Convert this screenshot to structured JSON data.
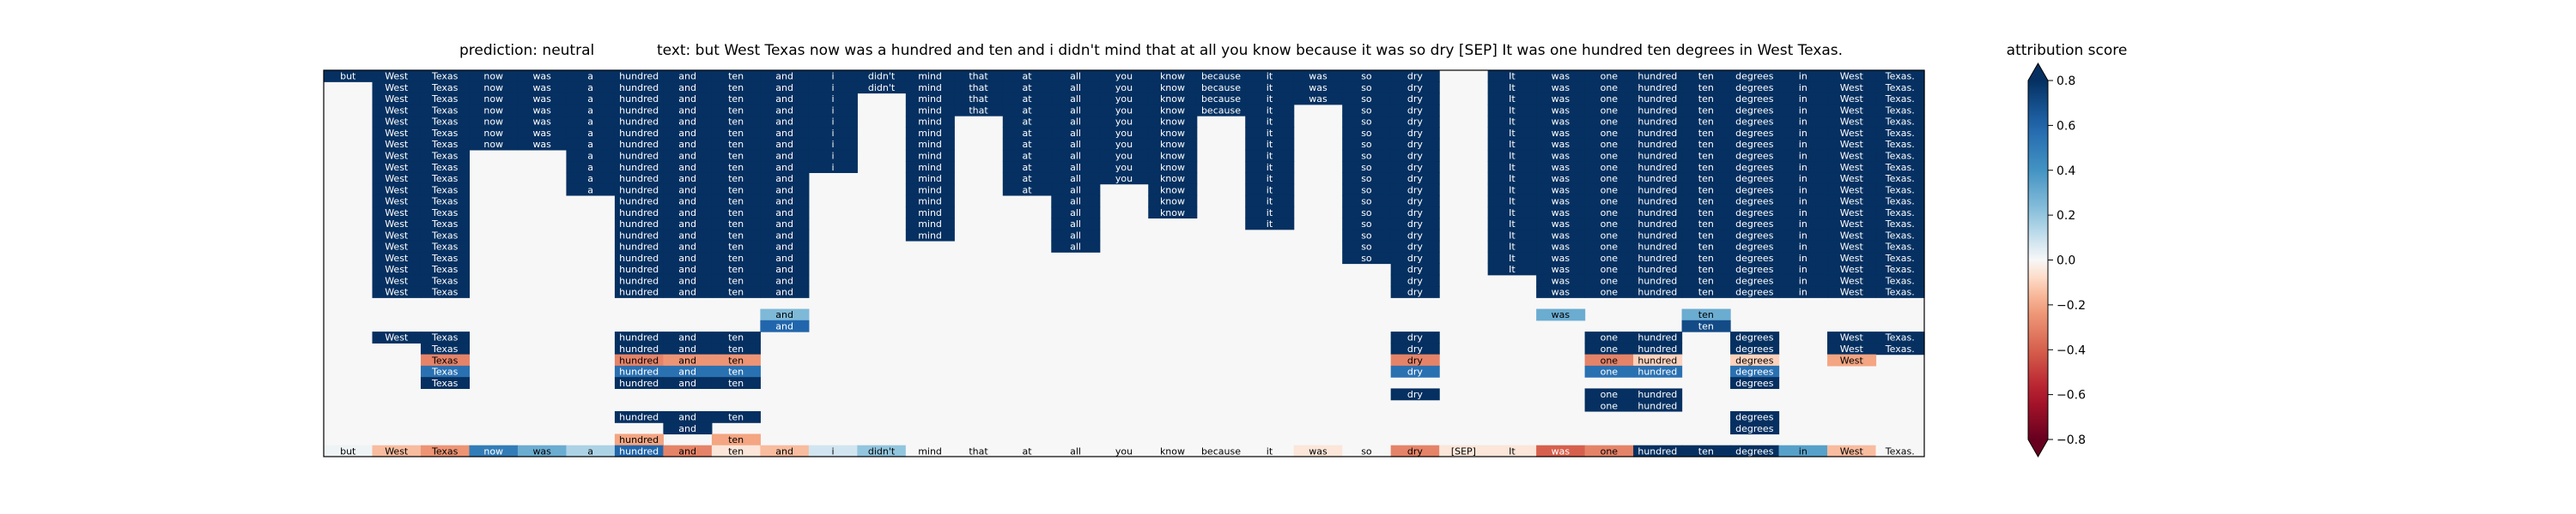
{
  "figure": {
    "title_prediction": "prediction:  neutral",
    "title_text": "text:  but West Texas now was a hundred and ten and i didn't mind that at all you know because it was so dry [SEP] It was one hundred ten degrees in West Texas.",
    "colorbar_label": "attribution score"
  },
  "chart_data": {
    "type": "heatmap",
    "tokens": [
      "but",
      "West",
      "Texas",
      "now",
      "was",
      "a",
      "hundred",
      "and",
      "ten",
      "and",
      "i",
      "didn't",
      "mind",
      "that",
      "at",
      "all",
      "you",
      "know",
      "because",
      "it",
      "was",
      "so",
      "dry",
      "[SEP]",
      "It",
      "was",
      "one",
      "hundred",
      "ten",
      "degrees",
      "in",
      "West",
      "Texas."
    ],
    "bottom_scores": [
      0.02,
      -0.15,
      -0.25,
      0.5,
      0.3,
      0.15,
      0.6,
      -0.3,
      -0.05,
      -0.15,
      0.08,
      0.2,
      0.0,
      0.0,
      0.0,
      0.0,
      0.0,
      0.0,
      0.0,
      0.0,
      -0.05,
      0.0,
      -0.3,
      -0.05,
      -0.05,
      -0.4,
      -0.3,
      0.8,
      0.85,
      0.85,
      0.35,
      -0.15,
      0.0
    ],
    "top_block_depths": [
      1,
      20,
      20,
      7,
      7,
      11,
      20,
      20,
      20,
      20,
      9,
      2,
      15,
      4,
      11,
      16,
      10,
      13,
      4,
      14,
      3,
      17,
      20,
      0,
      18,
      20,
      20,
      20,
      20,
      20,
      20,
      20,
      20
    ],
    "top_block_scores": [
      0.9,
      0.9,
      0.9,
      0.9,
      0.9,
      0.9,
      0.9,
      0.9,
      0.9,
      0.9,
      0.9,
      0.9,
      0.9,
      0.9,
      0.9,
      0.9,
      0.9,
      0.9,
      0.9,
      0.9,
      0.9,
      0.9,
      0.9,
      0.0,
      0.9,
      0.9,
      0.9,
      0.9,
      0.9,
      0.9,
      0.9,
      0.9,
      0.9
    ],
    "lower_cells": [
      [
        21,
        9,
        0.25
      ],
      [
        21,
        25,
        0.3
      ],
      [
        21,
        28,
        0.3
      ],
      [
        22,
        9,
        0.6
      ],
      [
        22,
        28,
        0.7
      ],
      [
        23,
        1,
        0.9
      ],
      [
        23,
        2,
        0.9
      ],
      [
        23,
        6,
        0.9
      ],
      [
        23,
        7,
        0.9
      ],
      [
        23,
        8,
        0.9
      ],
      [
        23,
        22,
        0.9
      ],
      [
        23,
        26,
        0.9
      ],
      [
        23,
        27,
        0.9
      ],
      [
        23,
        29,
        0.9
      ],
      [
        23,
        31,
        0.9
      ],
      [
        23,
        32,
        0.9
      ],
      [
        24,
        2,
        0.9
      ],
      [
        24,
        6,
        0.9
      ],
      [
        24,
        7,
        0.9
      ],
      [
        24,
        8,
        0.9
      ],
      [
        24,
        22,
        0.9
      ],
      [
        24,
        26,
        0.9
      ],
      [
        24,
        27,
        0.9
      ],
      [
        24,
        29,
        0.9
      ],
      [
        24,
        31,
        0.9
      ],
      [
        24,
        32,
        0.9
      ],
      [
        25,
        2,
        -0.3
      ],
      [
        25,
        6,
        -0.3
      ],
      [
        25,
        7,
        -0.25
      ],
      [
        25,
        8,
        -0.25
      ],
      [
        25,
        22,
        -0.3
      ],
      [
        25,
        26,
        -0.3
      ],
      [
        25,
        27,
        -0.1
      ],
      [
        25,
        29,
        -0.1
      ],
      [
        25,
        31,
        -0.2
      ],
      [
        26,
        2,
        0.55
      ],
      [
        26,
        6,
        0.55
      ],
      [
        26,
        7,
        0.55
      ],
      [
        26,
        8,
        0.55
      ],
      [
        26,
        22,
        0.55
      ],
      [
        26,
        26,
        0.55
      ],
      [
        26,
        27,
        0.55
      ],
      [
        26,
        29,
        0.55
      ],
      [
        27,
        2,
        0.8
      ],
      [
        27,
        6,
        0.8
      ],
      [
        27,
        7,
        0.8
      ],
      [
        27,
        8,
        0.8
      ],
      [
        27,
        29,
        0.8
      ],
      [
        28,
        22,
        0.9
      ],
      [
        28,
        26,
        0.9
      ],
      [
        28,
        27,
        0.9
      ],
      [
        29,
        26,
        0.9
      ],
      [
        29,
        27,
        0.9
      ],
      [
        30,
        6,
        0.9
      ],
      [
        30,
        7,
        0.9
      ],
      [
        30,
        8,
        0.9
      ],
      [
        30,
        29,
        0.9
      ],
      [
        31,
        7,
        0.9
      ],
      [
        31,
        29,
        0.9
      ],
      [
        32,
        6,
        -0.2
      ],
      [
        32,
        8,
        -0.2
      ]
    ],
    "colorbar_ticks": [
      0.8,
      0.6,
      0.4,
      0.2,
      0.0,
      -0.2,
      -0.4,
      -0.6,
      -0.8
    ],
    "colorbar_tick_labels": [
      "0.8",
      "0.6",
      "0.4",
      "0.2",
      "0.0",
      "−0.2",
      "−0.4",
      "−0.6",
      "−0.8"
    ],
    "vmin": -0.8,
    "vmax": 0.8,
    "colormap": "RdBu",
    "grid": false,
    "legend": "colorbar-right"
  }
}
